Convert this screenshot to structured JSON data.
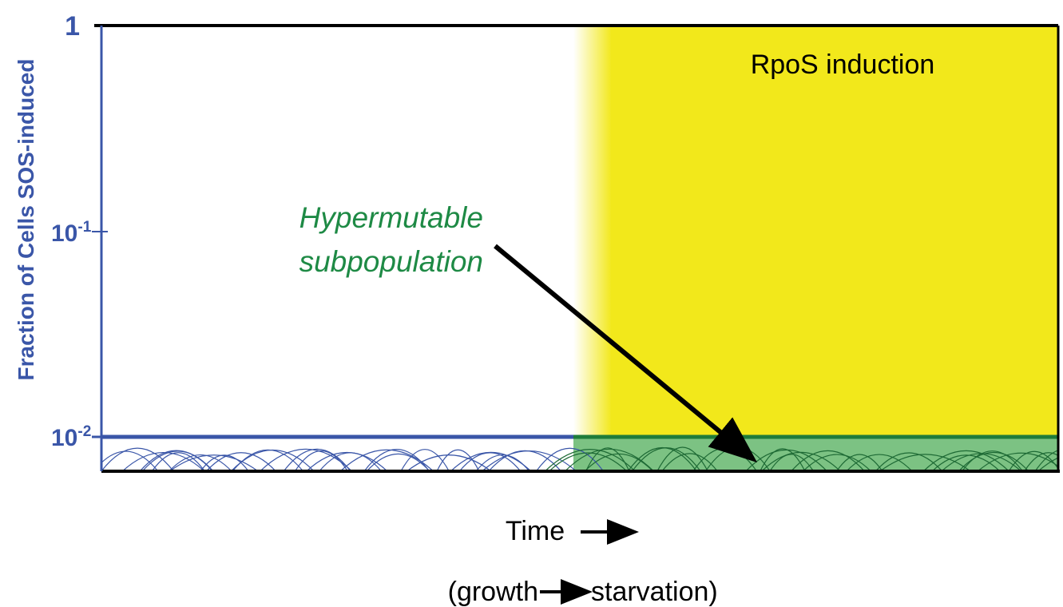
{
  "y_axis": {
    "label": "Fraction of Cells SOS-induced",
    "ticks": [
      {
        "label": "1"
      },
      {
        "base": "10",
        "exponent": "-1"
      },
      {
        "base": "10",
        "exponent": "-2"
      }
    ]
  },
  "annotations": {
    "rpos": "RpoS induction",
    "hypermutable": [
      "Hypermutable",
      "subpopulation"
    ]
  },
  "x_axis": {
    "label": "Time",
    "sublabel_left": "(growth",
    "sublabel_right": "starvation)"
  }
}
